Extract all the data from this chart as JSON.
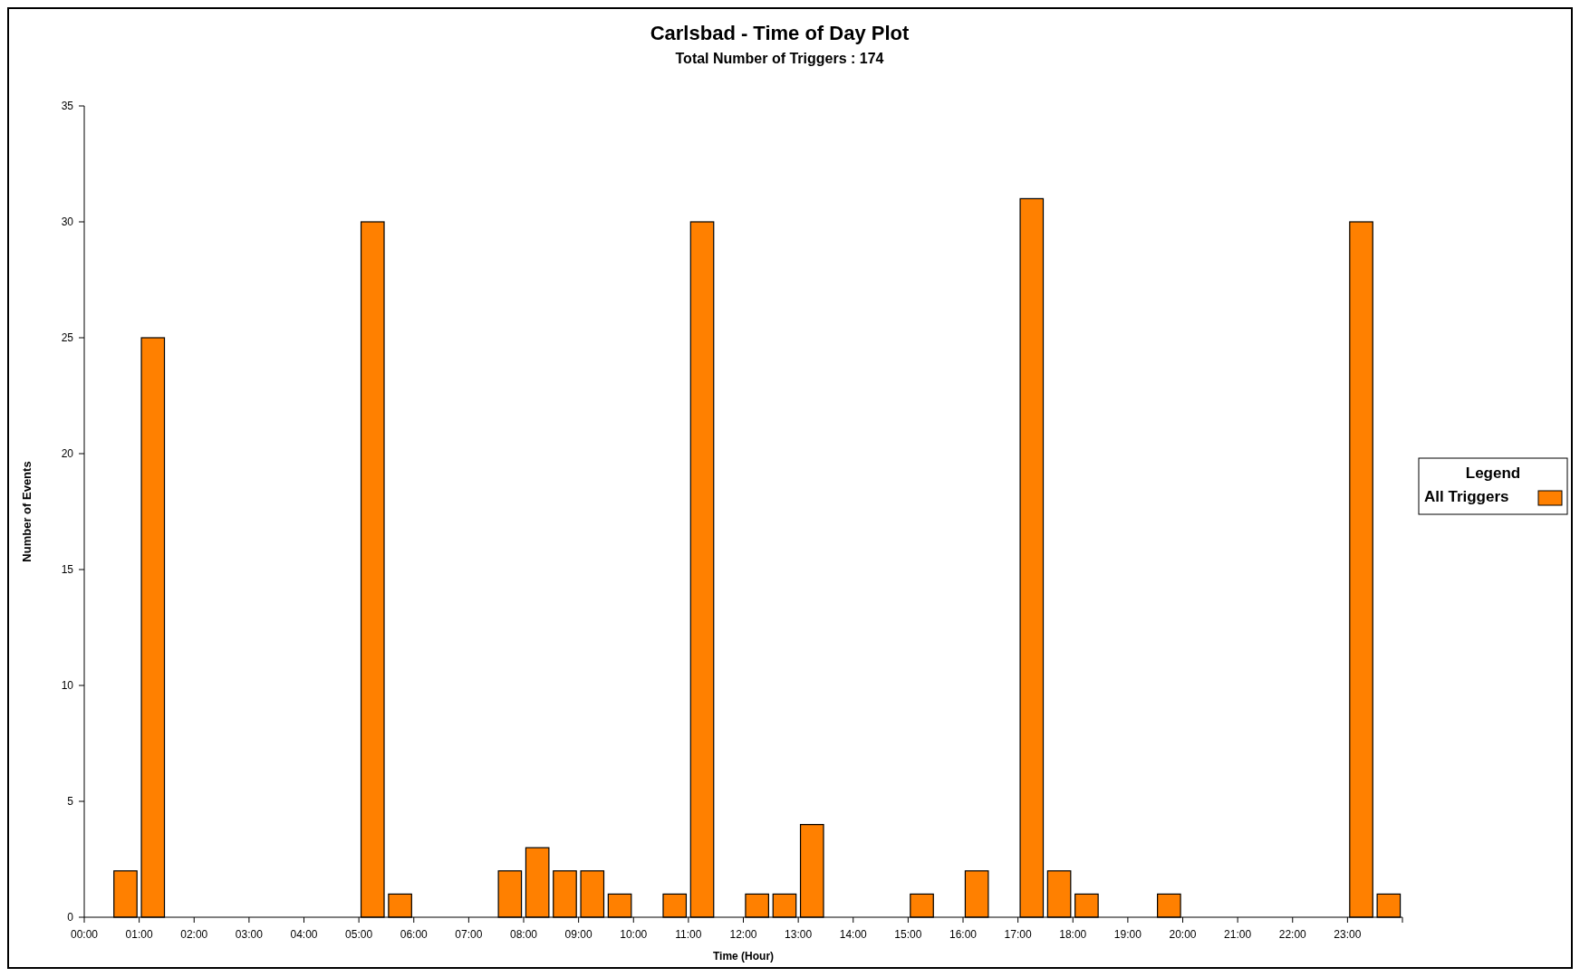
{
  "chart_data": {
    "type": "histogram",
    "title": "Carlsbad - Time of Day Plot",
    "subtitle": "Total Number of Triggers : 174",
    "xlabel": "Time (Hour)",
    "ylabel": "Number of Events",
    "legend_title": "Legend",
    "legend": "right",
    "grid": false,
    "bins": [
      0,
      0.5,
      1,
      1.5,
      2,
      2.5,
      3,
      3.5,
      4,
      4.5,
      5,
      5.5,
      6,
      6.5,
      7,
      7.5,
      8,
      8.5,
      9,
      9.5,
      10,
      10.5,
      11,
      11.5,
      12,
      12.5,
      13,
      13.5,
      14,
      14.5,
      15,
      15.5,
      16,
      16.5,
      17,
      17.5,
      18,
      18.5,
      19,
      19.5,
      20,
      20.5,
      21,
      21.5,
      22,
      22.5,
      23,
      23.5,
      24
    ],
    "series": [
      {
        "name": "All Triggers",
        "color": "#ff8000",
        "values": [
          0,
          2,
          25,
          0,
          0,
          0,
          0,
          0,
          0,
          0,
          30,
          1,
          0,
          0,
          0,
          2,
          3,
          2,
          2,
          1,
          0,
          1,
          30,
          0,
          1,
          1,
          4,
          0,
          0,
          0,
          1,
          0,
          2,
          0,
          31,
          2,
          1,
          0,
          0,
          1,
          0,
          0,
          0,
          0,
          0,
          0,
          30,
          1
        ]
      }
    ],
    "xlim": [
      0,
      24
    ],
    "ylim": [
      0,
      35
    ],
    "yticks": [
      0,
      5,
      10,
      15,
      20,
      25,
      30,
      35
    ],
    "xticks": [
      {
        "value": 0,
        "label": "00:00"
      },
      {
        "value": 1,
        "label": "01:00"
      },
      {
        "value": 2,
        "label": "02:00"
      },
      {
        "value": 3,
        "label": "03:00"
      },
      {
        "value": 4,
        "label": "04:00"
      },
      {
        "value": 5,
        "label": "05:00"
      },
      {
        "value": 6,
        "label": "06:00"
      },
      {
        "value": 7,
        "label": "07:00"
      },
      {
        "value": 8,
        "label": "08:00"
      },
      {
        "value": 9,
        "label": "09:00"
      },
      {
        "value": 10,
        "label": "10:00"
      },
      {
        "value": 11,
        "label": "11:00"
      },
      {
        "value": 12,
        "label": "12:00"
      },
      {
        "value": 13,
        "label": "13:00"
      },
      {
        "value": 14,
        "label": "14:00"
      },
      {
        "value": 15,
        "label": "15:00"
      },
      {
        "value": 16,
        "label": "16:00"
      },
      {
        "value": 17,
        "label": "17:00"
      },
      {
        "value": 18,
        "label": "18:00"
      },
      {
        "value": 19,
        "label": "19:00"
      },
      {
        "value": 20,
        "label": "20:00"
      },
      {
        "value": 21,
        "label": "21:00"
      },
      {
        "value": 22,
        "label": "22:00"
      },
      {
        "value": 23,
        "label": "23:00"
      },
      {
        "value": 24,
        "label": null
      }
    ]
  }
}
